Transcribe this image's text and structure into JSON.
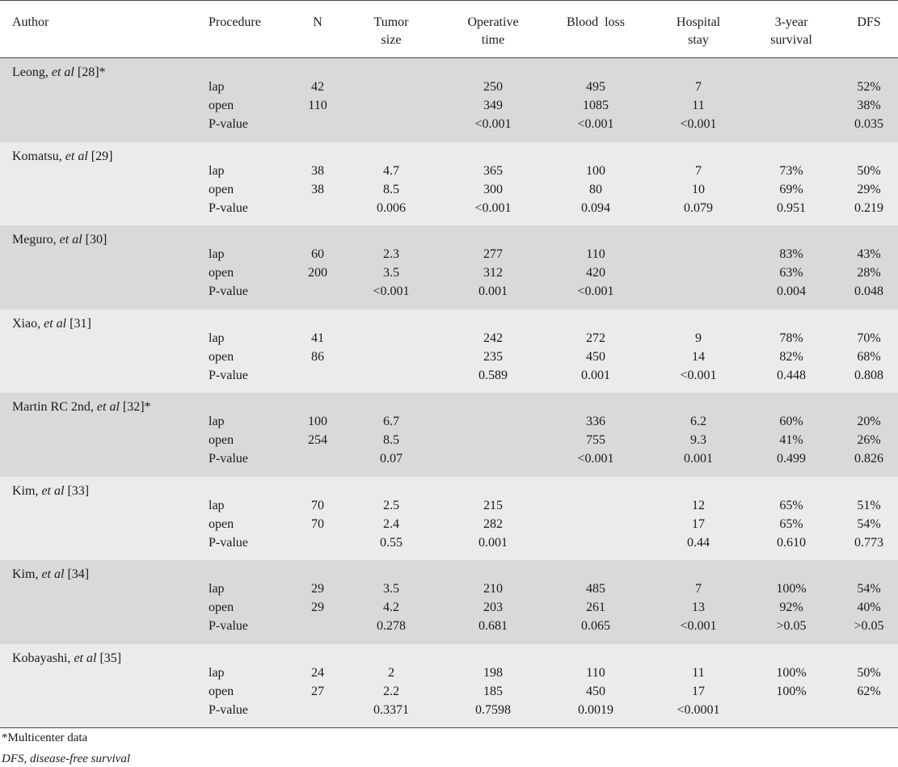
{
  "headers": {
    "author": "Author",
    "procedure": "Procedure",
    "n": "N",
    "tumor_size": [
      "Tumor",
      "size"
    ],
    "operative_time": [
      "Operative",
      "time"
    ],
    "blood_loss": "Blood  loss",
    "hospital_stay": [
      "Hospital",
      "stay"
    ],
    "survival_3yr": [
      "3-year",
      "survival"
    ],
    "dfs": "DFS"
  },
  "studies": [
    {
      "author_name": "Leong, ",
      "author_etal": "et al",
      "author_ref": " [28]*",
      "rows": [
        {
          "proc": "lap",
          "n": "42",
          "tumor": "",
          "optime": "250",
          "blood": "495",
          "stay": "7",
          "surv": "",
          "dfs": "52%"
        },
        {
          "proc": "open",
          "n": "110",
          "tumor": "",
          "optime": "349",
          "blood": "1085",
          "stay": "11",
          "surv": "",
          "dfs": "38%"
        },
        {
          "proc": "P-value",
          "n": "",
          "tumor": "",
          "optime": "<0.001",
          "blood": "<0.001",
          "stay": "<0.001",
          "surv": "",
          "dfs": "0.035"
        }
      ]
    },
    {
      "author_name": "Komatsu, ",
      "author_etal": "et al",
      "author_ref": " [29]",
      "rows": [
        {
          "proc": "lap",
          "n": "38",
          "tumor": "4.7",
          "optime": "365",
          "blood": "100",
          "stay": "7",
          "surv": "73%",
          "dfs": "50%"
        },
        {
          "proc": "open",
          "n": "38",
          "tumor": "8.5",
          "optime": "300",
          "blood": "80",
          "stay": "10",
          "surv": "69%",
          "dfs": "29%"
        },
        {
          "proc": "P-value",
          "n": "",
          "tumor": "0.006",
          "optime": "<0.001",
          "blood": "0.094",
          "stay": "0.079",
          "surv": "0.951",
          "dfs": "0.219"
        }
      ]
    },
    {
      "author_name": "Meguro, ",
      "author_etal": "et al",
      "author_ref": " [30]",
      "rows": [
        {
          "proc": "lap",
          "n": "60",
          "tumor": "2.3",
          "optime": "277",
          "blood": "110",
          "stay": "",
          "surv": "83%",
          "dfs": "43%"
        },
        {
          "proc": "open",
          "n": "200",
          "tumor": "3.5",
          "optime": "312",
          "blood": "420",
          "stay": "",
          "surv": "63%",
          "dfs": "28%"
        },
        {
          "proc": "P-value",
          "n": "",
          "tumor": "<0.001",
          "optime": "0.001",
          "blood": "<0.001",
          "stay": "",
          "surv": "0.004",
          "dfs": "0.048"
        }
      ]
    },
    {
      "author_name": "Xiao, ",
      "author_etal": "et al",
      "author_ref": " [31]",
      "rows": [
        {
          "proc": "lap",
          "n": "41",
          "tumor": "",
          "optime": "242",
          "blood": "272",
          "stay": "9",
          "surv": "78%",
          "dfs": "70%"
        },
        {
          "proc": "open",
          "n": "86",
          "tumor": "",
          "optime": "235",
          "blood": "450",
          "stay": "14",
          "surv": "82%",
          "dfs": "68%"
        },
        {
          "proc": "P-value",
          "n": "",
          "tumor": "",
          "optime": "0.589",
          "blood": "0.001",
          "stay": "<0.001",
          "surv": "0.448",
          "dfs": "0.808"
        }
      ]
    },
    {
      "author_name": "Martin RC 2nd, ",
      "author_etal": "et al",
      "author_ref": " [32]*",
      "rows": [
        {
          "proc": "lap",
          "n": "100",
          "tumor": "6.7",
          "optime": "",
          "blood": "336",
          "stay": "6.2",
          "surv": "60%",
          "dfs": "20%"
        },
        {
          "proc": "open",
          "n": "254",
          "tumor": "8.5",
          "optime": "",
          "blood": "755",
          "stay": "9.3",
          "surv": "41%",
          "dfs": "26%"
        },
        {
          "proc": "P-value",
          "n": "",
          "tumor": "0.07",
          "optime": "",
          "blood": "<0.001",
          "stay": "0.001",
          "surv": "0.499",
          "dfs": "0.826"
        }
      ]
    },
    {
      "author_name": "Kim, ",
      "author_etal": "et al",
      "author_ref": " [33]",
      "rows": [
        {
          "proc": "lap",
          "n": "70",
          "tumor": "2.5",
          "optime": "215",
          "blood": "",
          "stay": "12",
          "surv": "65%",
          "dfs": "51%"
        },
        {
          "proc": "open",
          "n": "70",
          "tumor": "2.4",
          "optime": "282",
          "blood": "",
          "stay": "17",
          "surv": "65%",
          "dfs": "54%"
        },
        {
          "proc": "P-value",
          "n": "",
          "tumor": "0.55",
          "optime": "0.001",
          "blood": "",
          "stay": "0.44",
          "surv": "0.610",
          "dfs": "0.773"
        }
      ]
    },
    {
      "author_name": "Kim, ",
      "author_etal": "et al",
      "author_ref": " [34]",
      "rows": [
        {
          "proc": "lap",
          "n": "29",
          "tumor": "3.5",
          "optime": "210",
          "blood": "485",
          "stay": "7",
          "surv": "100%",
          "dfs": "54%"
        },
        {
          "proc": "open",
          "n": "29",
          "tumor": "4.2",
          "optime": "203",
          "blood": "261",
          "stay": "13",
          "surv": "92%",
          "dfs": "40%"
        },
        {
          "proc": "P-value",
          "n": "",
          "tumor": "0.278",
          "optime": "0.681",
          "blood": "0.065",
          "stay": "<0.001",
          "surv": ">0.05",
          "dfs": ">0.05"
        }
      ]
    },
    {
      "author_name": "Kobayashi, ",
      "author_etal": "et al",
      "author_ref": " [35]",
      "rows": [
        {
          "proc": "lap",
          "n": "24",
          "tumor": "2",
          "optime": "198",
          "blood": "110",
          "stay": "11",
          "surv": "100%",
          "dfs": "50%"
        },
        {
          "proc": "open",
          "n": "27",
          "tumor": "2.2",
          "optime": "185",
          "blood": "450",
          "stay": "17",
          "surv": "100%",
          "dfs": "62%"
        },
        {
          "proc": "P-value",
          "n": "",
          "tumor": "0.3371",
          "optime": "0.7598",
          "blood": "0.0019",
          "stay": "<0.0001",
          "surv": "",
          "dfs": ""
        }
      ]
    }
  ],
  "footnotes": {
    "multicenter": "*Multicenter data",
    "dfs_def": "DFS, disease-free survival"
  },
  "colors": {
    "band_dark": "#d9d9db",
    "band_light": "#ebebed",
    "rule": "#444444"
  }
}
